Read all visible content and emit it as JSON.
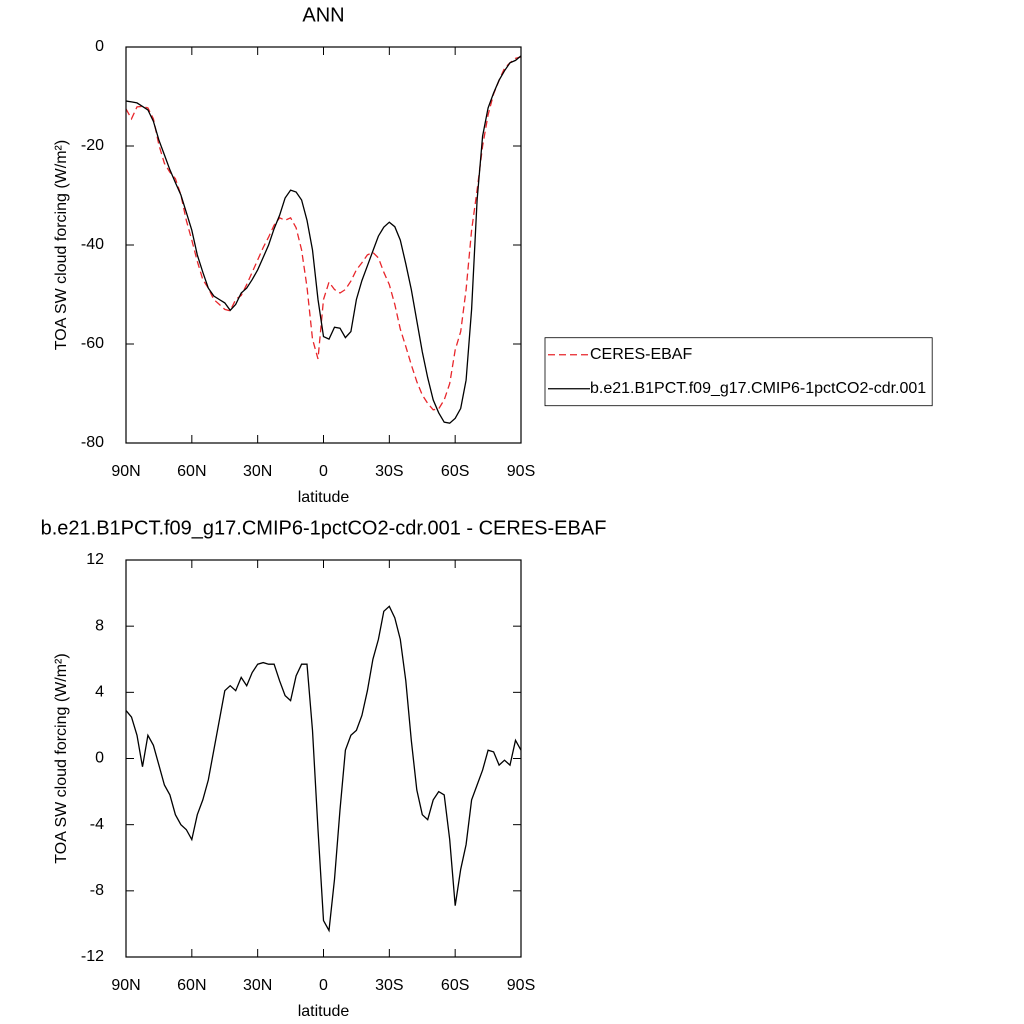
{
  "chart_data": [
    {
      "type": "line",
      "title": "ANN",
      "x_label": "latitude",
      "y_label": "TOA SW cloud forcing (W/m²)",
      "x": [
        90,
        87.5,
        85,
        82.5,
        80,
        77.5,
        75,
        72.5,
        70,
        67.5,
        65,
        62.5,
        60,
        57.5,
        55,
        52.5,
        50,
        47.5,
        45,
        42.5,
        40,
        37.5,
        35,
        32.5,
        30,
        27.5,
        25,
        22.5,
        20,
        17.5,
        15,
        12.5,
        10,
        7.5,
        5,
        2.5,
        0,
        -2.5,
        -5,
        -7.5,
        -10,
        -12.5,
        -15,
        -17.5,
        -20,
        -22.5,
        -25,
        -27.5,
        -30,
        -32.5,
        -35,
        -37.5,
        -40,
        -42.5,
        -45,
        -47.5,
        -50,
        -52.5,
        -55,
        -57.5,
        -60,
        -62.5,
        -65,
        -67.5,
        -70,
        -72.5,
        -75,
        -77.5,
        -80,
        -82.5,
        -85,
        -87.5,
        -90
      ],
      "xlim": [
        90,
        -90
      ],
      "xticks": [
        {
          "value": 90,
          "label": "90N"
        },
        {
          "value": 60,
          "label": "60N"
        },
        {
          "value": 30,
          "label": "30N"
        },
        0,
        {
          "value": -30,
          "label": "30S"
        },
        {
          "value": -60,
          "label": "60S"
        },
        {
          "value": -90,
          "label": "90S"
        }
      ],
      "ylim": [
        -80,
        0
      ],
      "yticks": [
        -80,
        -60,
        -40,
        -20,
        0
      ],
      "legend": "right",
      "series": [
        {
          "name": "CERES-EBAF",
          "color": "#e8262b",
          "line_style": "dashed",
          "values": [
            -12.5,
            -14.5,
            -12.1,
            -12,
            -12.3,
            -14.5,
            -19.8,
            -23.5,
            -25.3,
            -26.6,
            -29.9,
            -35,
            -39,
            -43.3,
            -47,
            -48.7,
            -51,
            -52,
            -53,
            -53.3,
            -51,
            -50.2,
            -48,
            -45.5,
            -43,
            -40.5,
            -38.4,
            -36,
            -34.5,
            -35,
            -34.5,
            -36.5,
            -41,
            -48.5,
            -59,
            -63,
            -51,
            -47.5,
            -49,
            -49.7,
            -49,
            -47.3,
            -45,
            -43.6,
            -42,
            -41.5,
            -42.6,
            -45.5,
            -48,
            -52,
            -57,
            -60.5,
            -64.2,
            -67.6,
            -70.3,
            -72,
            -73.3,
            -73.1,
            -71.3,
            -68,
            -61.2,
            -57.5,
            -49,
            -37,
            -28.9,
            -20,
            -13.7,
            -9.5,
            -6.7,
            -4.3,
            -3.2,
            -2.3,
            -2
          ]
        },
        {
          "name": "b.e21.B1PCT.f09_g17.CMIP6-1pctCO2-cdr.001",
          "color": "#000000",
          "line_style": "solid",
          "values": [
            -10.9,
            -11.1,
            -11.3,
            -12,
            -12.7,
            -15,
            -18.8,
            -21.8,
            -24.8,
            -27.4,
            -29.9,
            -33.4,
            -37,
            -42,
            -45.5,
            -48.7,
            -50.3,
            -51,
            -51.7,
            -53.2,
            -52,
            -49.7,
            -48.7,
            -47,
            -45,
            -42.5,
            -40,
            -36.7,
            -34,
            -30.5,
            -28.9,
            -29.3,
            -30.9,
            -35,
            -41,
            -51,
            -58.5,
            -59,
            -56.6,
            -56.8,
            -58.7,
            -57.5,
            -51,
            -47.2,
            -44.2,
            -41.2,
            -38.2,
            -36.4,
            -35.4,
            -36.3,
            -39,
            -43.8,
            -49,
            -55.3,
            -61.6,
            -66.8,
            -71.3,
            -73.9,
            -75.8,
            -76,
            -75,
            -73,
            -67.3,
            -53,
            -30.9,
            -18,
            -12.3,
            -9.3,
            -6.7,
            -4.8,
            -3.2,
            -2.7,
            -1.8
          ]
        }
      ]
    },
    {
      "type": "line",
      "title": "b.e21.B1PCT.f09_g17.CMIP6-1pctCO2-cdr.001 - CERES-EBAF",
      "x_label": "latitude",
      "y_label": "TOA SW cloud forcing (W/m²)",
      "x": [
        90,
        87.5,
        85,
        82.5,
        80,
        77.5,
        75,
        72.5,
        70,
        67.5,
        65,
        62.5,
        60,
        57.5,
        55,
        52.5,
        50,
        47.5,
        45,
        42.5,
        40,
        37.5,
        35,
        32.5,
        30,
        27.5,
        25,
        22.5,
        20,
        17.5,
        15,
        12.5,
        10,
        7.5,
        5,
        2.5,
        0,
        -2.5,
        -5,
        -7.5,
        -10,
        -12.5,
        -15,
        -17.5,
        -20,
        -22.5,
        -25,
        -27.5,
        -30,
        -32.5,
        -35,
        -37.5,
        -40,
        -42.5,
        -45,
        -47.5,
        -50,
        -52.5,
        -55,
        -57.5,
        -60,
        -62.5,
        -65,
        -67.5,
        -70,
        -72.5,
        -75,
        -77.5,
        -80,
        -82.5,
        -85,
        -87.5,
        -90
      ],
      "xlim": [
        90,
        -90
      ],
      "xticks": [
        {
          "value": 90,
          "label": "90N"
        },
        {
          "value": 60,
          "label": "60N"
        },
        {
          "value": 30,
          "label": "30N"
        },
        0,
        {
          "value": -30,
          "label": "30S"
        },
        {
          "value": -60,
          "label": "60S"
        },
        {
          "value": -90,
          "label": "90S"
        }
      ],
      "ylim": [
        -12,
        12
      ],
      "yticks": [
        -12,
        -8,
        -4,
        0,
        4,
        8,
        12
      ],
      "series": [
        {
          "color": "#000000",
          "line_style": "solid",
          "values": [
            2.9,
            2.5,
            1.4,
            -0.5,
            1.4,
            0.8,
            -0.4,
            -1.6,
            -2.2,
            -3.4,
            -4,
            -4.3,
            -4.9,
            -3.4,
            -2.5,
            -1.3,
            0.5,
            2.3,
            4.1,
            4.4,
            4.1,
            4.9,
            4.4,
            5.2,
            5.7,
            5.8,
            5.7,
            5.7,
            4.7,
            3.8,
            3.5,
            5,
            5.7,
            5.7,
            1.7,
            -4.3,
            -9.8,
            -10.4,
            -7.3,
            -3.1,
            0.5,
            1.4,
            1.7,
            2.6,
            4.1,
            6,
            7.2,
            8.9,
            9.2,
            8.5,
            7.2,
            4.7,
            1.1,
            -1.9,
            -3.4,
            -3.7,
            -2.5,
            -2,
            -2.2,
            -4.9,
            -8.9,
            -6.7,
            -5.2,
            -2.5,
            -1.6,
            -0.7,
            0.5,
            0.4,
            -0.4,
            -0.1,
            -0.4,
            1.1,
            0.5
          ]
        }
      ]
    }
  ]
}
